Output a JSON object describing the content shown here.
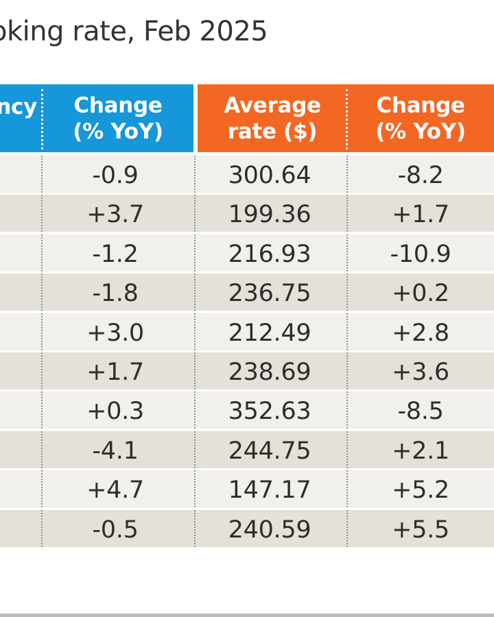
{
  "chart_data": {
    "type": "table",
    "title": "oking rate, Feb 2025",
    "columns": [
      "ncy",
      "Change\n(% YoY)",
      "Average\nrate ($)",
      "Change\n(% YoY)"
    ],
    "header_colors": [
      "#1597d9",
      "#1597d9",
      "#f26722",
      "#f26722"
    ],
    "rows": [
      {
        "c0": "",
        "c1": "-0.9",
        "c2": "300.64",
        "c3": "-8.2"
      },
      {
        "c0": "",
        "c1": "+3.7",
        "c2": "199.36",
        "c3": "+1.7"
      },
      {
        "c0": "",
        "c1": "-1.2",
        "c2": "216.93",
        "c3": "-10.9"
      },
      {
        "c0": "",
        "c1": "-1.8",
        "c2": "236.75",
        "c3": "+0.2"
      },
      {
        "c0": "",
        "c1": "+3.0",
        "c2": "212.49",
        "c3": "+2.8"
      },
      {
        "c0": "",
        "c1": "+1.7",
        "c2": "238.69",
        "c3": "+3.6"
      },
      {
        "c0": "",
        "c1": "+0.3",
        "c2": "352.63",
        "c3": "-8.5"
      },
      {
        "c0": "",
        "c1": "-4.1",
        "c2": "244.75",
        "c3": "+2.1"
      },
      {
        "c0": "",
        "c1": "+4.7",
        "c2": "147.17",
        "c3": "+5.2"
      },
      {
        "c0": "",
        "c1": "-0.5",
        "c2": "240.59",
        "c3": "+5.5"
      }
    ],
    "row_colors": [
      "#f1f0eb",
      "#e3e1d8"
    ]
  }
}
